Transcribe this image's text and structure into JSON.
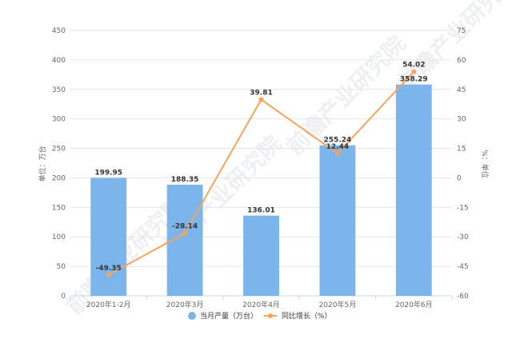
{
  "chart_data": {
    "type": "bar",
    "categories": [
      "2020年1-2月",
      "2020年3月",
      "2020年4月",
      "2020年5月",
      "2020年6月"
    ],
    "series": [
      {
        "name": "当月产量（万台）",
        "type": "bar",
        "axis": "left",
        "color": "#7cb5ec",
        "values": [
          199.95,
          188.35,
          136.01,
          255.24,
          358.29
        ],
        "labels": [
          "199.95",
          "188.35",
          "136.01",
          "255.24",
          "358.29"
        ]
      },
      {
        "name": "同比增长（%）",
        "type": "line",
        "axis": "right",
        "color": "#f7a35c",
        "values": [
          -49.35,
          -28.14,
          39.81,
          12.44,
          54.02
        ],
        "labels": [
          "-49.35",
          "-28.14",
          "39.81",
          "12.44",
          "54.02"
        ]
      }
    ],
    "yleft": {
      "label": "单位：万台",
      "lim": [
        0,
        450
      ],
      "ticks": [
        "0",
        "50",
        "100",
        "150",
        "200",
        "250",
        "300",
        "350",
        "400",
        "450"
      ]
    },
    "yright": {
      "label": "%：单位",
      "lim": [
        -60,
        75
      ],
      "ticks": [
        "-60",
        "-45",
        "-30",
        "-15",
        "0",
        "15",
        "30",
        "45",
        "60",
        "75"
      ]
    },
    "grid": true,
    "legend": "bottom-center"
  },
  "watermark": "前瞻产业研究院"
}
